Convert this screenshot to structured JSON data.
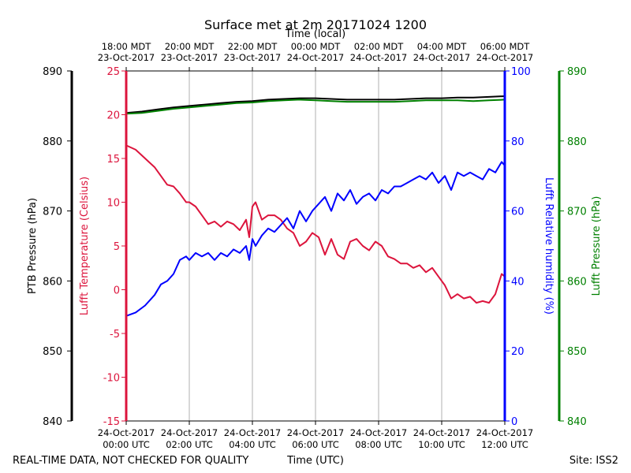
{
  "chart_data": {
    "type": "line",
    "title": "Surface met at 2m 20171024 1200",
    "top_axis_label": "Time (local)",
    "top_ticks": [
      [
        "18:00 MDT",
        "23-Oct-2017"
      ],
      [
        "20:00 MDT",
        "23-Oct-2017"
      ],
      [
        "22:00 MDT",
        "23-Oct-2017"
      ],
      [
        "00:00 MDT",
        "24-Oct-2017"
      ],
      [
        "02:00 MDT",
        "24-Oct-2017"
      ],
      [
        "04:00 MDT",
        "24-Oct-2017"
      ],
      [
        "06:00 MDT",
        "24-Oct-2017"
      ]
    ],
    "bottom_ticks": [
      [
        "24-Oct-2017",
        "00:00 UTC"
      ],
      [
        "24-Oct-2017",
        "02:00 UTC"
      ],
      [
        "24-Oct-2017",
        "04:00 UTC"
      ],
      [
        "24-Oct-2017",
        "06:00 UTC"
      ],
      [
        "24-Oct-2017",
        "08:00 UTC"
      ],
      [
        "24-Oct-2017",
        "10:00 UTC"
      ],
      [
        "24-Oct-2017",
        "12:00 UTC"
      ]
    ],
    "xlabel": "Time (UTC)",
    "xlim_hours_utc": [
      0,
      12
    ],
    "grid": "vertical",
    "axes": {
      "ptb": {
        "label": "PTB Pressure (hPa)",
        "ylim": [
          840,
          890
        ],
        "ticks": [
          840,
          850,
          860,
          870,
          880,
          890
        ],
        "color": "#000000"
      },
      "temp": {
        "label": "Lufft Temperature (Celsius)",
        "ylim": [
          -15,
          25
        ],
        "ticks": [
          -15,
          -10,
          -5,
          0,
          5,
          10,
          15,
          20,
          25
        ],
        "color": "#dc143c"
      },
      "rh": {
        "label": "Lufft Relative humidity (%)",
        "ylim": [
          0,
          100
        ],
        "ticks": [
          0,
          20,
          40,
          60,
          80,
          100
        ],
        "color": "#0000ff"
      },
      "lufft_p": {
        "label": "Lufft Pressure (hPa)",
        "ylim": [
          840,
          890
        ],
        "ticks": [
          840,
          850,
          860,
          870,
          880,
          890
        ],
        "color": "#008000"
      }
    },
    "series": [
      {
        "name": "PTB Pressure",
        "axis": "ptb",
        "color": "#000000",
        "x": [
          0,
          0.5,
          1,
          1.5,
          2,
          2.5,
          3,
          3.5,
          4,
          4.5,
          5,
          5.5,
          6,
          6.5,
          7,
          7.5,
          8,
          8.5,
          9,
          9.5,
          10,
          10.5,
          11,
          11.5,
          12
        ],
        "y": [
          884.0,
          884.2,
          884.5,
          884.8,
          885.0,
          885.2,
          885.4,
          885.6,
          885.7,
          885.9,
          886.0,
          886.1,
          886.1,
          886.0,
          885.9,
          885.9,
          885.9,
          885.9,
          886.0,
          886.1,
          886.1,
          886.2,
          886.2,
          886.3,
          886.4
        ]
      },
      {
        "name": "Lufft Pressure",
        "axis": "lufft_p",
        "color": "#008000",
        "x": [
          0,
          0.5,
          1,
          1.5,
          2,
          2.5,
          3,
          3.5,
          4,
          4.5,
          5,
          5.5,
          6,
          6.5,
          7,
          7.5,
          8,
          8.5,
          9,
          9.5,
          10,
          10.5,
          11,
          11.5,
          12
        ],
        "y": [
          883.9,
          884.0,
          884.3,
          884.6,
          884.8,
          885.0,
          885.2,
          885.4,
          885.5,
          885.7,
          885.8,
          885.9,
          885.8,
          885.7,
          885.6,
          885.6,
          885.6,
          885.6,
          885.7,
          885.8,
          885.8,
          885.8,
          885.7,
          885.8,
          885.9
        ]
      },
      {
        "name": "Lufft Temperature",
        "axis": "temp",
        "color": "#dc143c",
        "x": [
          0,
          0.3,
          0.6,
          0.9,
          1.1,
          1.3,
          1.5,
          1.7,
          1.9,
          2.0,
          2.2,
          2.4,
          2.6,
          2.8,
          3.0,
          3.2,
          3.4,
          3.6,
          3.8,
          3.9,
          4.0,
          4.1,
          4.3,
          4.5,
          4.7,
          4.9,
          5.1,
          5.3,
          5.5,
          5.7,
          5.9,
          6.1,
          6.3,
          6.5,
          6.7,
          6.9,
          7.1,
          7.3,
          7.5,
          7.7,
          7.9,
          8.1,
          8.3,
          8.5,
          8.7,
          8.9,
          9.1,
          9.3,
          9.5,
          9.7,
          9.9,
          10.1,
          10.3,
          10.5,
          10.7,
          10.9,
          11.1,
          11.3,
          11.5,
          11.7,
          11.9,
          12.0
        ],
        "y": [
          16.5,
          16.0,
          15.0,
          14.0,
          13.0,
          12.0,
          11.8,
          11.0,
          10.0,
          10.0,
          9.5,
          8.5,
          7.5,
          7.8,
          7.2,
          7.8,
          7.5,
          6.8,
          8.0,
          6.0,
          9.5,
          10.0,
          8.0,
          8.5,
          8.5,
          8.0,
          7.0,
          6.5,
          5.0,
          5.5,
          6.5,
          6.0,
          4.0,
          5.8,
          4.0,
          3.5,
          5.5,
          5.8,
          5.0,
          4.5,
          5.5,
          5.0,
          3.8,
          3.5,
          3.0,
          3.0,
          2.5,
          2.8,
          2.0,
          2.5,
          1.5,
          0.5,
          -1.0,
          -0.5,
          -1.0,
          -0.8,
          -1.5,
          -1.3,
          -1.5,
          -0.5,
          1.8,
          1.5
        ]
      },
      {
        "name": "Lufft Relative humidity",
        "axis": "rh",
        "color": "#0000ff",
        "x": [
          0,
          0.3,
          0.6,
          0.9,
          1.1,
          1.3,
          1.5,
          1.7,
          1.9,
          2.0,
          2.2,
          2.4,
          2.6,
          2.8,
          3.0,
          3.2,
          3.4,
          3.6,
          3.8,
          3.9,
          4.0,
          4.1,
          4.3,
          4.5,
          4.7,
          4.9,
          5.1,
          5.3,
          5.5,
          5.7,
          5.9,
          6.1,
          6.3,
          6.5,
          6.7,
          6.9,
          7.1,
          7.3,
          7.5,
          7.7,
          7.9,
          8.1,
          8.3,
          8.5,
          8.7,
          8.9,
          9.1,
          9.3,
          9.5,
          9.7,
          9.9,
          10.1,
          10.3,
          10.5,
          10.7,
          10.9,
          11.1,
          11.3,
          11.5,
          11.7,
          11.9,
          12.0
        ],
        "y": [
          30,
          31,
          33,
          36,
          39,
          40,
          42,
          46,
          47,
          46,
          48,
          47,
          48,
          46,
          48,
          47,
          49,
          48,
          50,
          46,
          52,
          50,
          53,
          55,
          54,
          56,
          58,
          55,
          60,
          57,
          60,
          62,
          64,
          60,
          65,
          63,
          66,
          62,
          64,
          65,
          63,
          66,
          65,
          67,
          67,
          68,
          69,
          70,
          69,
          71,
          68,
          70,
          66,
          71,
          70,
          71,
          70,
          69,
          72,
          71,
          74,
          73
        ]
      }
    ],
    "footer_left": "REAL-TIME DATA, NOT CHECKED FOR QUALITY",
    "footer_right": "Site: ISS2"
  }
}
